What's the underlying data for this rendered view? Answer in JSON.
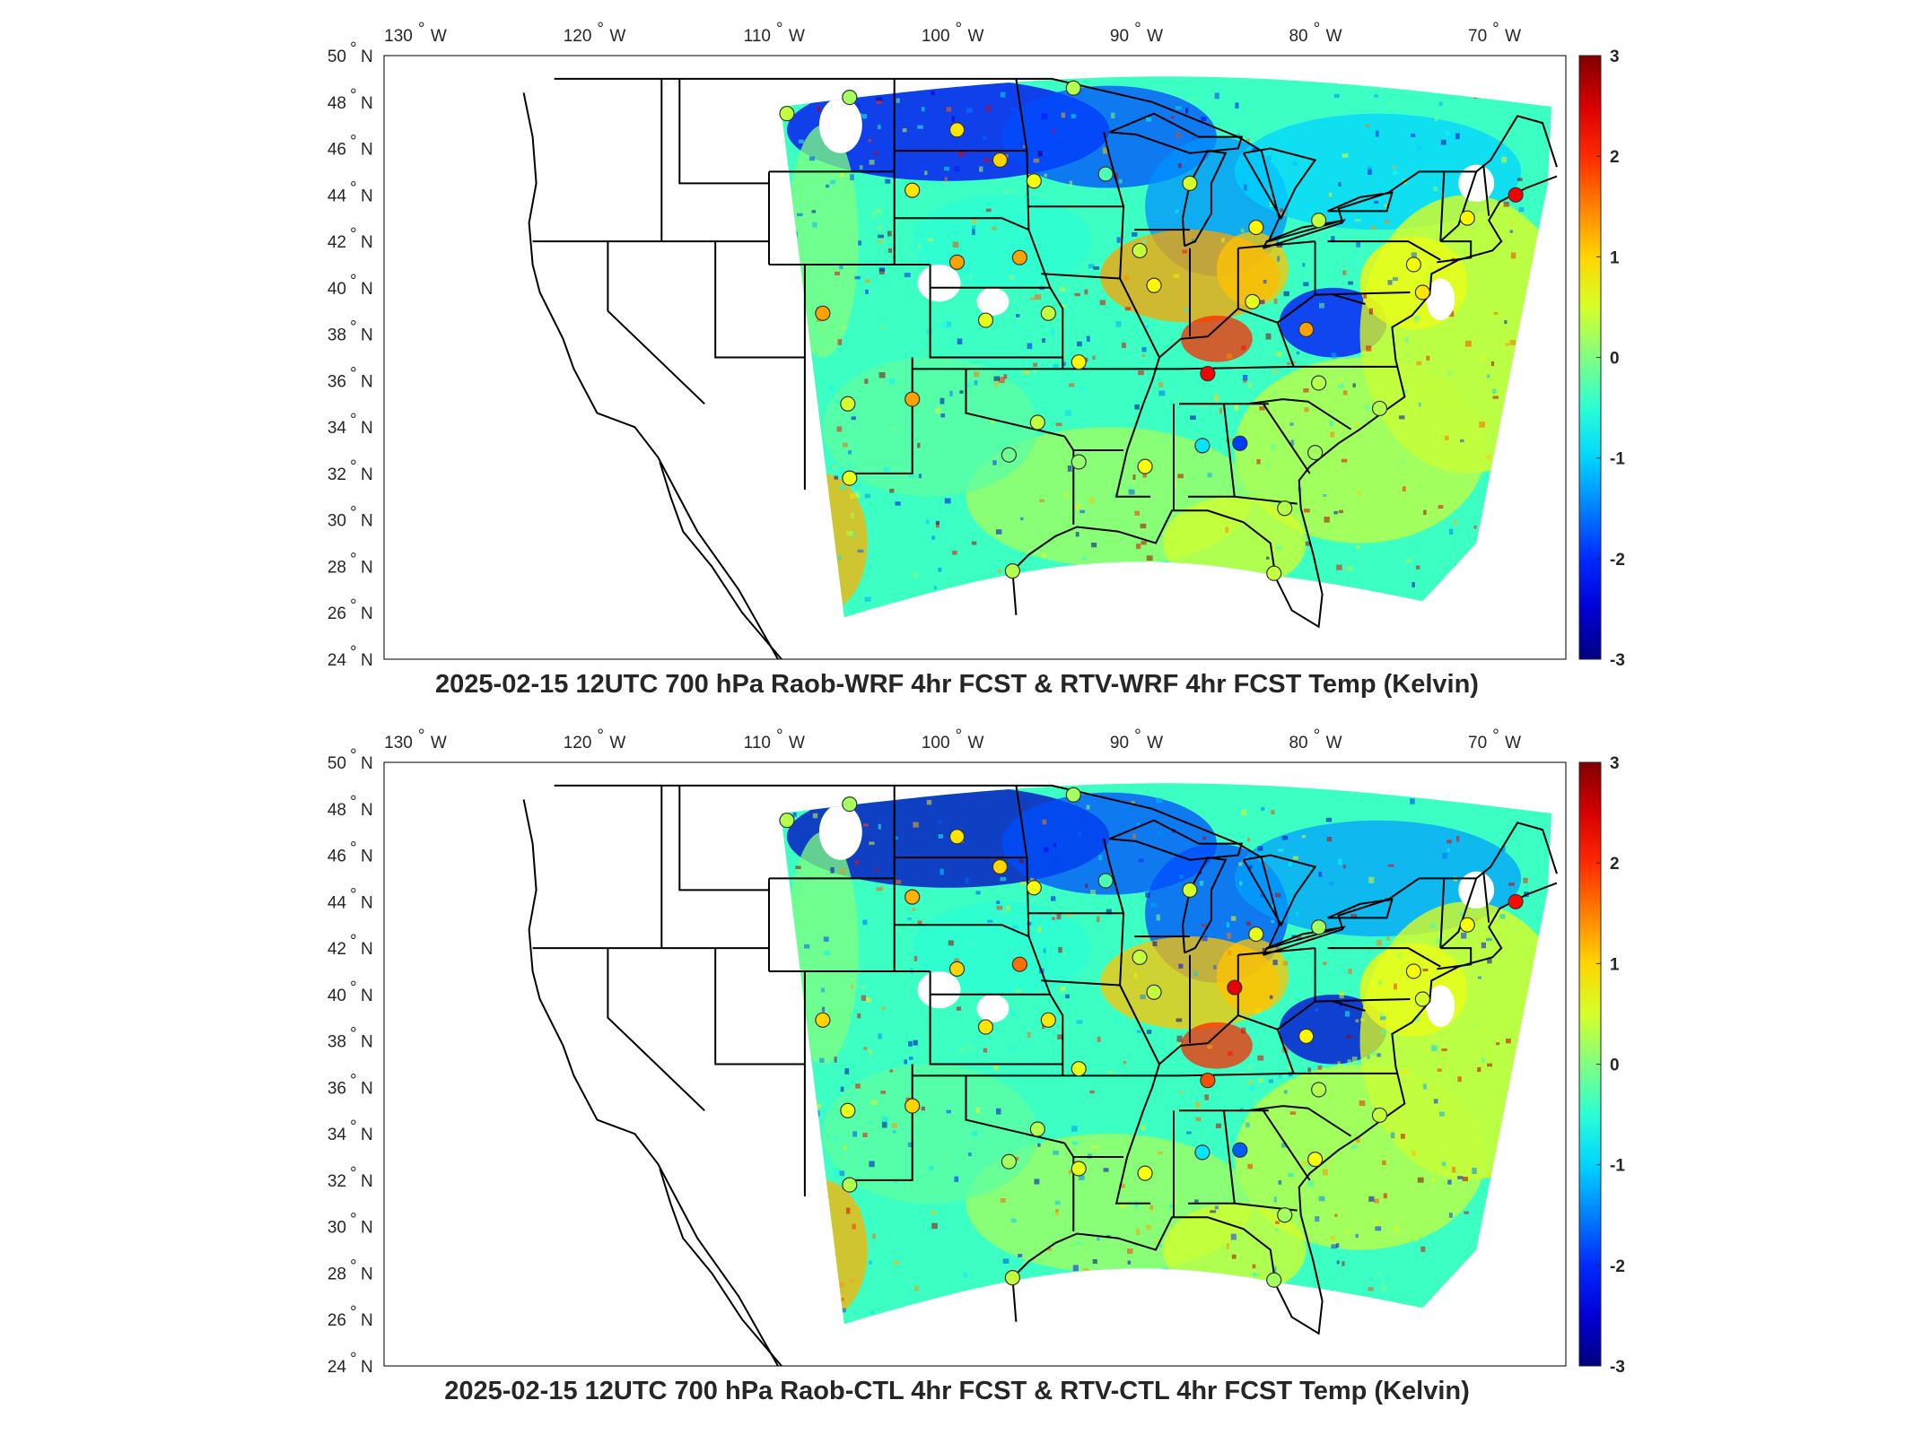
{
  "panels": [
    {
      "title": "2025-02-15 12UTC 700 hPa Raob-WRF 4hr FCST & RTV-WRF 4hr FCST Temp (Kelvin)",
      "stations": [
        [
          -110.0,
          47.5,
          0.4
        ],
        [
          -106.5,
          48.2,
          0.2
        ],
        [
          -100.5,
          46.8,
          0.9
        ],
        [
          -98.1,
          45.5,
          1.0
        ],
        [
          -94.0,
          48.6,
          0.3
        ],
        [
          -103.0,
          44.2,
          0.9
        ],
        [
          -96.2,
          44.6,
          0.7
        ],
        [
          -92.2,
          44.9,
          -0.3
        ],
        [
          -87.5,
          44.5,
          0.5
        ],
        [
          -100.5,
          41.1,
          1.3
        ],
        [
          -97.0,
          41.3,
          1.3
        ],
        [
          -90.3,
          41.6,
          0.4
        ],
        [
          -89.5,
          40.1,
          0.8
        ],
        [
          -83.8,
          42.6,
          0.8
        ],
        [
          -80.3,
          42.9,
          0.4
        ],
        [
          -72.0,
          43.0,
          0.8
        ],
        [
          -69.3,
          44.0,
          2.3
        ],
        [
          -75.0,
          41.0,
          0.7
        ],
        [
          -108.0,
          38.9,
          1.3
        ],
        [
          -106.6,
          35.0,
          0.5
        ],
        [
          -103.0,
          35.2,
          1.3
        ],
        [
          -98.9,
          38.6,
          0.6
        ],
        [
          -95.4,
          38.9,
          0.4
        ],
        [
          -93.7,
          36.8,
          0.8
        ],
        [
          -86.5,
          36.3,
          2.3
        ],
        [
          -84.0,
          39.4,
          0.6
        ],
        [
          -81.0,
          38.2,
          1.3
        ],
        [
          -80.3,
          35.9,
          0.3
        ],
        [
          -90.0,
          32.3,
          0.7
        ],
        [
          -86.8,
          33.2,
          -0.9
        ],
        [
          -84.7,
          33.3,
          -1.9
        ],
        [
          -96.0,
          34.2,
          0.4
        ],
        [
          -97.6,
          32.8,
          -0.1
        ],
        [
          -93.7,
          32.5,
          0.1
        ],
        [
          -76.9,
          34.8,
          0.3
        ],
        [
          -80.5,
          32.9,
          0.2
        ],
        [
          -82.2,
          30.5,
          0.3
        ],
        [
          -97.4,
          27.8,
          0.3
        ],
        [
          -82.8,
          27.7,
          0.4
        ],
        [
          -106.5,
          31.8,
          0.6
        ],
        [
          -74.5,
          39.8,
          0.9
        ]
      ]
    },
    {
      "title": "2025-02-15 12UTC 700 hPa Raob-CTL 4hr FCST & RTV-CTL 4hr FCST Temp (Kelvin)",
      "stations": [
        [
          -110.0,
          47.5,
          0.3
        ],
        [
          -106.5,
          48.2,
          0.2
        ],
        [
          -100.5,
          46.8,
          0.9
        ],
        [
          -98.1,
          45.5,
          1.0
        ],
        [
          -94.0,
          48.6,
          0.2
        ],
        [
          -103.0,
          44.2,
          1.2
        ],
        [
          -96.2,
          44.6,
          0.7
        ],
        [
          -92.2,
          44.9,
          -0.3
        ],
        [
          -87.5,
          44.5,
          0.5
        ],
        [
          -100.5,
          41.1,
          1.0
        ],
        [
          -97.0,
          41.3,
          1.6
        ],
        [
          -90.3,
          41.6,
          0.4
        ],
        [
          -89.5,
          40.1,
          0.4
        ],
        [
          -85.0,
          40.3,
          2.4
        ],
        [
          -83.8,
          42.6,
          0.6
        ],
        [
          -80.3,
          42.9,
          0.2
        ],
        [
          -72.0,
          43.0,
          0.7
        ],
        [
          -69.3,
          44.0,
          2.2
        ],
        [
          -75.0,
          41.0,
          0.7
        ],
        [
          -108.0,
          38.9,
          1.0
        ],
        [
          -106.6,
          35.0,
          0.6
        ],
        [
          -103.0,
          35.2,
          1.0
        ],
        [
          -98.9,
          38.6,
          0.9
        ],
        [
          -95.4,
          38.9,
          0.9
        ],
        [
          -93.7,
          36.8,
          0.6
        ],
        [
          -86.5,
          36.3,
          1.8
        ],
        [
          -81.0,
          38.2,
          0.8
        ],
        [
          -80.3,
          35.9,
          0.3
        ],
        [
          -90.0,
          32.3,
          0.7
        ],
        [
          -86.8,
          33.2,
          -0.9
        ],
        [
          -84.7,
          33.3,
          -1.7
        ],
        [
          -96.0,
          34.2,
          0.3
        ],
        [
          -97.6,
          32.8,
          0.2
        ],
        [
          -93.7,
          32.5,
          0.6
        ],
        [
          -76.9,
          34.8,
          0.4
        ],
        [
          -80.5,
          32.9,
          0.7
        ],
        [
          -82.2,
          30.5,
          0.2
        ],
        [
          -97.4,
          27.8,
          0.4
        ],
        [
          -82.8,
          27.7,
          0.2
        ],
        [
          -106.5,
          31.8,
          0.3
        ],
        [
          -74.5,
          39.8,
          0.5
        ]
      ]
    }
  ],
  "lon_ticks": [
    "130",
    "120",
    "110",
    "100",
    "90",
    "80",
    "70"
  ],
  "lon_values": [
    -130,
    -120,
    -110,
    -100,
    -90,
    -80,
    -70
  ],
  "lat_ticks": [
    "50",
    "48",
    "46",
    "44",
    "42",
    "40",
    "38",
    "36",
    "34",
    "32",
    "30",
    "28",
    "26",
    "24"
  ],
  "lat_values": [
    50,
    48,
    46,
    44,
    42,
    40,
    38,
    36,
    34,
    32,
    30,
    28,
    26,
    24
  ],
  "lon_suffix": "W",
  "lat_suffix": "N",
  "colorbar": {
    "ticks": [
      "3",
      "2",
      "1",
      "0",
      "-1",
      "-2",
      "-3"
    ],
    "min": -3,
    "max": 3,
    "colormap": "jet"
  },
  "colors": {
    "coast": "#000000",
    "frame": "#262626"
  }
}
